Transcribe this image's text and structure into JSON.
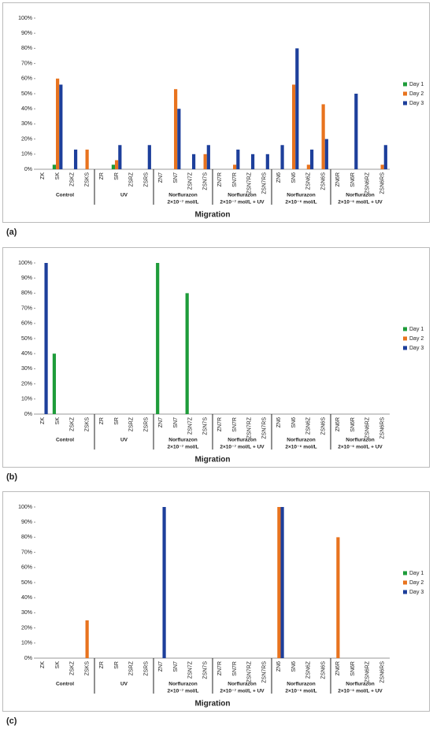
{
  "chart_data": [
    {
      "type": "bar",
      "panel_label": "(a)",
      "xlabel": "Migration",
      "legend": "right",
      "categories": [
        "ZK",
        "SK",
        "ZSKZ",
        "ZSKS",
        "ZR",
        "SR",
        "ZSRZ",
        "ZSRS",
        "ZN7",
        "SN7",
        "ZSN7Z",
        "ZSN7S",
        "ZN7R",
        "SN7R",
        "ZSN7RZ",
        "ZSN7RS",
        "ZN6",
        "SN6",
        "ZSN6Z",
        "ZSN6S",
        "ZN6R",
        "SN6R",
        "ZSN6RZ",
        "ZSN6RS"
      ],
      "groups": [
        [
          "Control"
        ],
        [
          "UV"
        ],
        [
          "Norflurazon",
          "2×10⁻⁷ mol/L"
        ],
        [
          "Norflurazon",
          "2×10⁻⁷ mol/L + UV"
        ],
        [
          "Norflurazon",
          "2×10⁻⁶ mol/L"
        ],
        [
          "Norflurazon",
          "2×10⁻⁶ mol/L + UV"
        ]
      ],
      "series": [
        {
          "name": "Day 1",
          "color": "#1e9c3a",
          "values": [
            0,
            3,
            0,
            0,
            0,
            3,
            0,
            0,
            0,
            0,
            0,
            0,
            0,
            0,
            0,
            0,
            0,
            0,
            0,
            0,
            0,
            0,
            0,
            0
          ]
        },
        {
          "name": "Day 2",
          "color": "#e8731e",
          "values": [
            0,
            60,
            0,
            13,
            0,
            6,
            0,
            0,
            0,
            53,
            0,
            10,
            0,
            3,
            0,
            0,
            0,
            56,
            3,
            43,
            0,
            0,
            0,
            3
          ]
        },
        {
          "name": "Day 3",
          "color": "#1d3f9b",
          "values": [
            0,
            56,
            13,
            0,
            0,
            16,
            0,
            16,
            0,
            40,
            10,
            16,
            0,
            13,
            10,
            10,
            16,
            80,
            13,
            20,
            0,
            50,
            0,
            16
          ]
        }
      ],
      "ylim": [
        0,
        100
      ],
      "yticks": [
        {
          "value": 0,
          "label": "0%"
        },
        {
          "value": 10,
          "label": "10%"
        },
        {
          "value": 20,
          "label": "20%"
        },
        {
          "value": 30,
          "label": "30%"
        },
        {
          "value": 40,
          "label": "40%"
        },
        {
          "value": 50,
          "label": "50%"
        },
        {
          "value": 60,
          "label": "60%"
        },
        {
          "value": 70,
          "label": "70%"
        },
        {
          "value": 80,
          "label": "80%"
        },
        {
          "value": 90,
          "label": "90%"
        },
        {
          "value": 100,
          "label": "100%"
        }
      ]
    },
    {
      "type": "bar",
      "panel_label": "(b)",
      "xlabel": "Migration",
      "legend": "right",
      "categories": [
        "ZK",
        "SK",
        "ZSKZ",
        "ZSKS",
        "ZR",
        "SR",
        "ZSRZ",
        "ZSRS",
        "ZN7",
        "SN7",
        "ZSN7Z",
        "ZSN7S",
        "ZN7R",
        "SN7R",
        "ZSN7RZ",
        "ZSN7RS",
        "ZN6",
        "SN6",
        "ZSN6Z",
        "ZSN6S",
        "ZN6R",
        "SN6R",
        "ZSN6RZ",
        "ZSN6RS"
      ],
      "groups": [
        [
          "Control"
        ],
        [
          "UV"
        ],
        [
          "Norflurazon",
          "2×10⁻⁷ mol/L"
        ],
        [
          "Norflurazon",
          "2×10⁻⁷ mol/L + UV"
        ],
        [
          "Norflurazon",
          "2×10⁻⁶ mol/L"
        ],
        [
          "Norflurazon",
          "2×10⁻⁶ mol/L + UV"
        ]
      ],
      "series": [
        {
          "name": "Day 1",
          "color": "#1e9c3a",
          "values": [
            0,
            40,
            0,
            0,
            0,
            0,
            0,
            0,
            100,
            0,
            80,
            0,
            0,
            0,
            0,
            0,
            0,
            0,
            0,
            0,
            0,
            0,
            0,
            0
          ]
        },
        {
          "name": "Day 2",
          "color": "#e8731e",
          "values": [
            0,
            0,
            0,
            0,
            0,
            0,
            0,
            0,
            0,
            0,
            0,
            0,
            0,
            0,
            0,
            0,
            0,
            0,
            0,
            0,
            0,
            0,
            0,
            0
          ]
        },
        {
          "name": "Day 3",
          "color": "#1d3f9b",
          "values": [
            100,
            0,
            0,
            0,
            0,
            0,
            0,
            0,
            0,
            0,
            0,
            0,
            0,
            0,
            0,
            0,
            0,
            0,
            0,
            0,
            0,
            0,
            0,
            0
          ]
        }
      ],
      "ylim": [
        0,
        100
      ],
      "yticks": [
        {
          "value": 0,
          "label": "0%"
        },
        {
          "value": 10,
          "label": "10%"
        },
        {
          "value": 20,
          "label": "20%"
        },
        {
          "value": 30,
          "label": "30%"
        },
        {
          "value": 40,
          "label": "40%"
        },
        {
          "value": 50,
          "label": "50%"
        },
        {
          "value": 60,
          "label": "60%"
        },
        {
          "value": 70,
          "label": "70%"
        },
        {
          "value": 80,
          "label": "80%"
        },
        {
          "value": 90,
          "label": "90%"
        },
        {
          "value": 100,
          "label": "100%"
        }
      ]
    },
    {
      "type": "bar",
      "panel_label": "(c)",
      "xlabel": "Migration",
      "legend": "right",
      "categories": [
        "ZK",
        "SK",
        "ZSKZ",
        "ZSKS",
        "ZR",
        "SR",
        "ZSRZ",
        "ZSRS",
        "ZN7",
        "SN7",
        "ZSN7Z",
        "ZSN7S",
        "ZN7R",
        "SN7R",
        "ZSN7RZ",
        "ZSN7RS",
        "ZN6",
        "SN6",
        "ZSN6Z",
        "ZSN6S",
        "ZN6R",
        "SN6R",
        "ZSN6RZ",
        "ZSN6RS"
      ],
      "groups": [
        [
          "Control"
        ],
        [
          "UV"
        ],
        [
          "Norflurazon",
          "2×10⁻⁷ mol/L"
        ],
        [
          "Norflurazon",
          "2×10⁻⁷ mol/L + UV"
        ],
        [
          "Norflurazon",
          "2×10⁻⁶ mol/L"
        ],
        [
          "Norflurazon",
          "2×10⁻⁶ mol/L + UV"
        ]
      ],
      "series": [
        {
          "name": "Day 1",
          "color": "#1e9c3a",
          "values": [
            0,
            0,
            0,
            0,
            0,
            0,
            0,
            0,
            0,
            0,
            0,
            0,
            0,
            0,
            0,
            0,
            0,
            0,
            0,
            0,
            0,
            0,
            0,
            0
          ]
        },
        {
          "name": "Day 2",
          "color": "#e8731e",
          "values": [
            0,
            0,
            0,
            25,
            0,
            0,
            0,
            0,
            0,
            0,
            0,
            0,
            0,
            0,
            0,
            0,
            100,
            0,
            0,
            0,
            80,
            0,
            0,
            0
          ]
        },
        {
          "name": "Day 3",
          "color": "#1d3f9b",
          "values": [
            0,
            0,
            0,
            0,
            0,
            0,
            0,
            0,
            100,
            0,
            0,
            0,
            0,
            0,
            0,
            0,
            100,
            0,
            0,
            0,
            0,
            0,
            0,
            0
          ]
        }
      ],
      "ylim": [
        0,
        100
      ],
      "yticks": [
        {
          "value": 0,
          "label": "0%"
        },
        {
          "value": 10,
          "label": "10%"
        },
        {
          "value": 20,
          "label": "20%"
        },
        {
          "value": 30,
          "label": "30%"
        },
        {
          "value": 40,
          "label": "40%"
        },
        {
          "value": 50,
          "label": "50%"
        },
        {
          "value": 60,
          "label": "60%"
        },
        {
          "value": 70,
          "label": "70%"
        },
        {
          "value": 80,
          "label": "80%"
        },
        {
          "value": 90,
          "label": "90%"
        },
        {
          "value": 100,
          "label": "100%"
        }
      ]
    }
  ]
}
